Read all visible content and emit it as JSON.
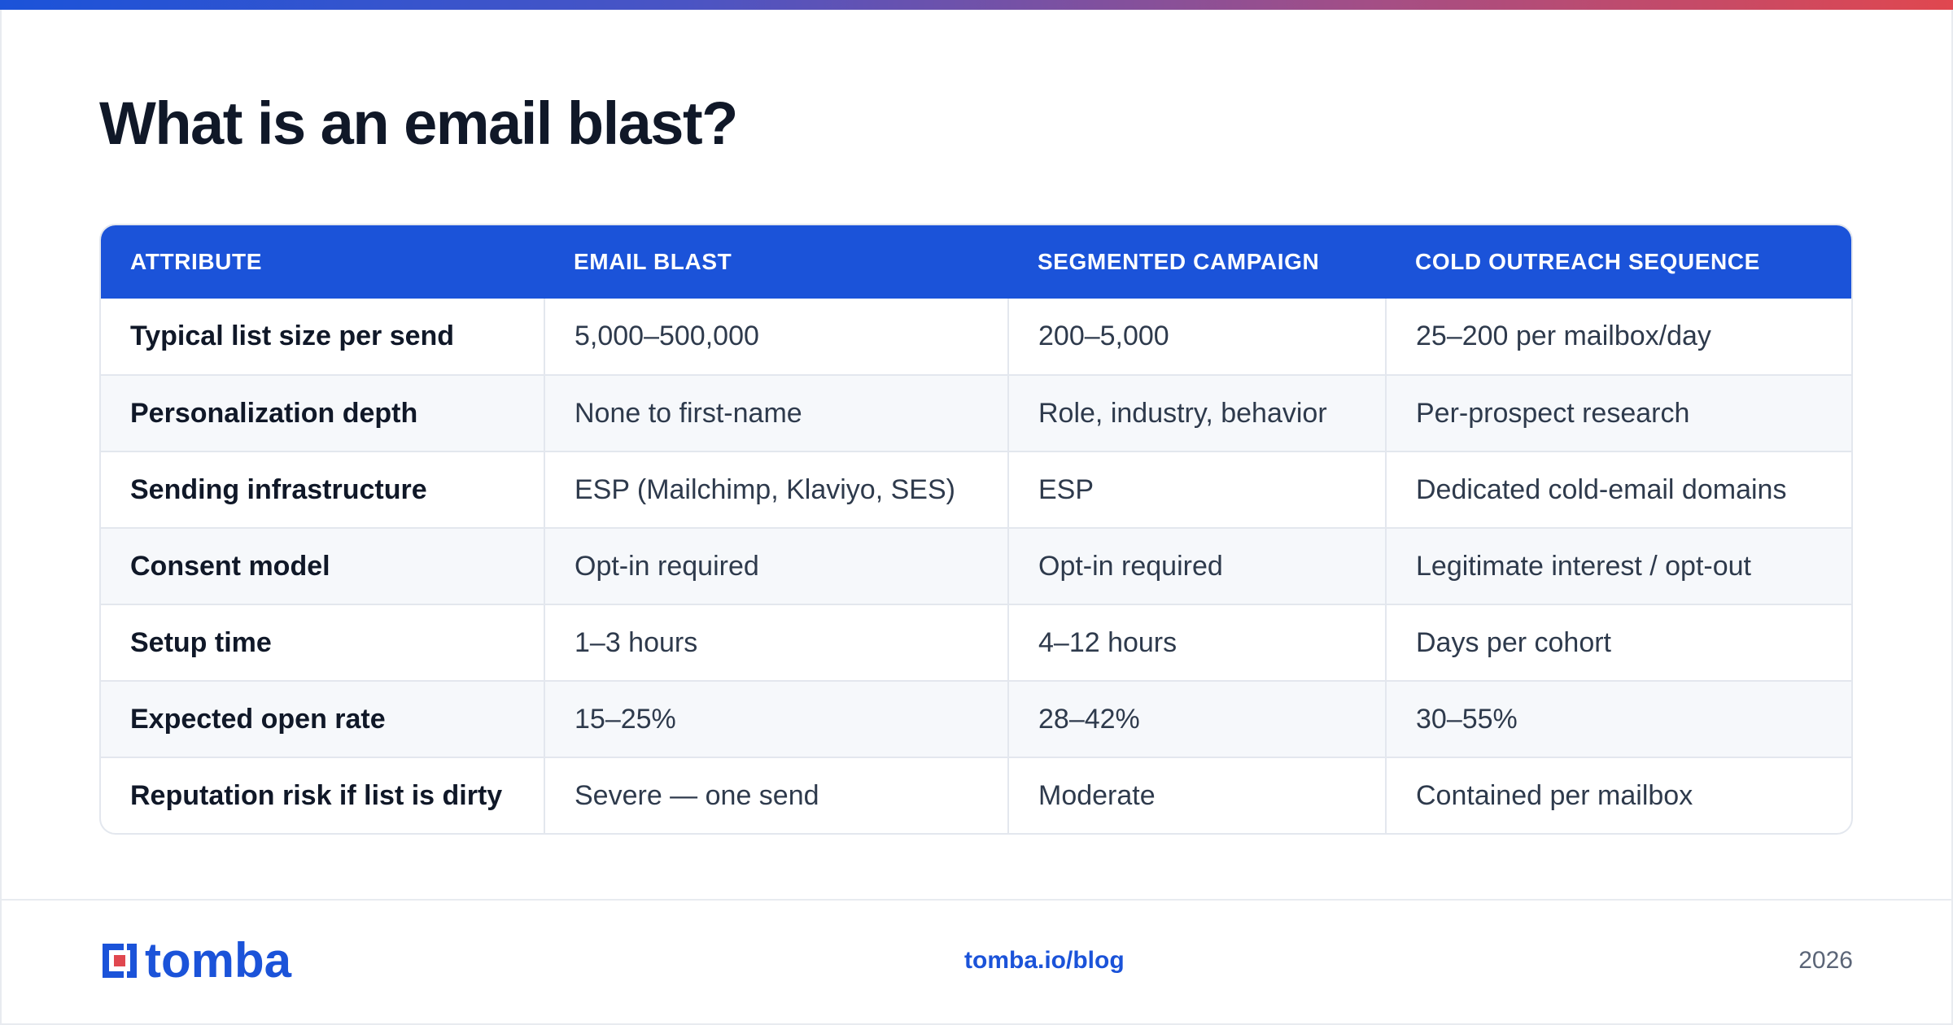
{
  "brand": {
    "accent": "#1b53d9",
    "logo_accent": "#e0474f",
    "gradient": [
      "#1b53d9",
      "#4a54c4",
      "#a34e86",
      "#e0474f"
    ]
  },
  "title": "What is an email blast?",
  "table": {
    "headers": [
      "ATTRIBUTE",
      "EMAIL BLAST",
      "SEGMENTED CAMPAIGN",
      "COLD OUTREACH SEQUENCE"
    ],
    "rows": [
      [
        "Typical list size per send",
        "5,000–500,000",
        "200–5,000",
        "25–200 per mailbox/day"
      ],
      [
        "Personalization depth",
        "None to first-name",
        "Role, industry, behavior",
        "Per-prospect research"
      ],
      [
        "Sending infrastructure",
        "ESP (Mailchimp, Klaviyo, SES)",
        "ESP",
        "Dedicated cold-email domains"
      ],
      [
        "Consent model",
        "Opt-in required",
        "Opt-in required",
        "Legitimate interest / opt-out"
      ],
      [
        "Setup time",
        "1–3 hours",
        "4–12 hours",
        "Days per cohort"
      ],
      [
        "Expected open rate",
        "15–25%",
        "28–42%",
        "30–55%"
      ],
      [
        "Reputation risk if list is dirty",
        "Severe — one send",
        "Moderate",
        "Contained per mailbox"
      ]
    ]
  },
  "footer": {
    "logo_text": "tomba",
    "logo_icon": "tomba-logo-icon",
    "link": "tomba.io/blog",
    "year": "2026"
  }
}
